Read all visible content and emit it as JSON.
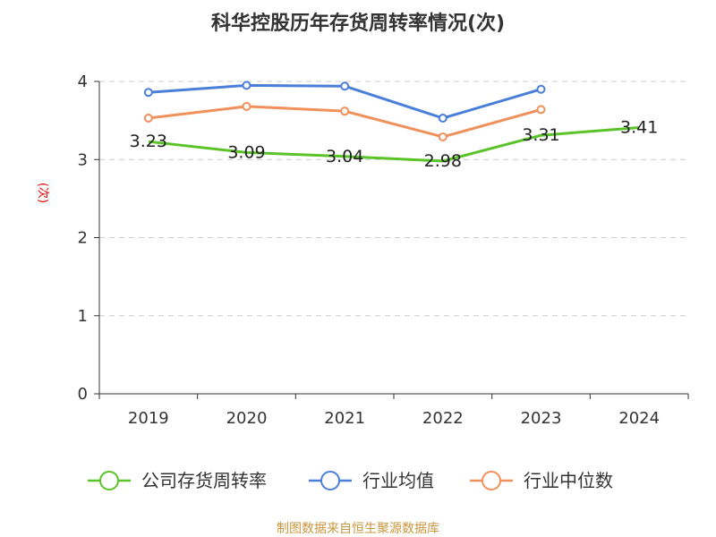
{
  "chart_data": {
    "type": "line",
    "title": "科华控股历年存货周转率情况(次)",
    "ylabel": "(次)",
    "xlabel": "",
    "categories": [
      "2019",
      "2020",
      "2021",
      "2022",
      "2023",
      "2024"
    ],
    "ylim": [
      0,
      4
    ],
    "yticks": [
      0,
      1,
      2,
      3,
      4
    ],
    "grid": true,
    "legend_position": "bottom",
    "series": [
      {
        "name": "公司存货周转率",
        "color": "#5ac328",
        "values": [
          3.23,
          3.09,
          3.04,
          2.98,
          3.31,
          3.41
        ],
        "labels": [
          "3.23",
          "3.09",
          "3.04",
          "2.98",
          "3.31",
          "3.41"
        ]
      },
      {
        "name": "行业均值",
        "color": "#4a7fd9",
        "values": [
          3.86,
          3.95,
          3.94,
          3.53,
          3.9,
          null
        ]
      },
      {
        "name": "行业中位数",
        "color": "#f0905a",
        "values": [
          3.53,
          3.68,
          3.62,
          3.29,
          3.64,
          null
        ]
      }
    ]
  },
  "source": "制图数据来自恒生聚源数据库"
}
